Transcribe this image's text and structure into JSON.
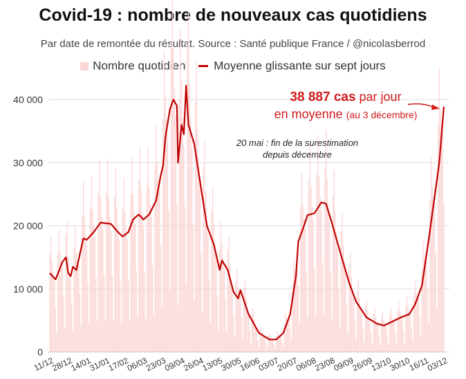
{
  "chart_data": {
    "type": "bar+line",
    "title": "Covid-19 : nombre de nouveaux cas quotidiens",
    "subtitle": "Par date de remontée du résultat. Source : Santé publique France / @nicolasberrod",
    "legend": [
      "Nombre quotidien",
      "Moyenne glissante sur sept jours"
    ],
    "legend_position": "top",
    "ylim": [
      0,
      45000
    ],
    "yticks": [
      0,
      10000,
      20000,
      30000,
      40000
    ],
    "ytick_labels": [
      "0",
      "10 000",
      "20 000",
      "30 000",
      "40 000"
    ],
    "xtick_labels": [
      "11/12",
      "28/12",
      "14/01",
      "31/01",
      "17/02",
      "06/03",
      "23/03",
      "09/04",
      "26/04",
      "13/05",
      "30/05",
      "16/06",
      "03/07",
      "20/07",
      "06/08",
      "23/08",
      "09/09",
      "26/09",
      "13/10",
      "30/10",
      "16/11",
      "03/12"
    ],
    "xtick_step_days": 17,
    "total_days": 357,
    "moving_average": [
      [
        0,
        12500
      ],
      [
        5,
        11500
      ],
      [
        11,
        14300
      ],
      [
        14,
        15000
      ],
      [
        16,
        12500
      ],
      [
        18,
        12000
      ],
      [
        20,
        13500
      ],
      [
        23,
        13000
      ],
      [
        26,
        15500
      ],
      [
        29,
        18000
      ],
      [
        32,
        17800
      ],
      [
        38,
        19000
      ],
      [
        44,
        20500
      ],
      [
        53,
        20300
      ],
      [
        59,
        19000
      ],
      [
        63,
        18300
      ],
      [
        68,
        19000
      ],
      [
        72,
        21000
      ],
      [
        77,
        21800
      ],
      [
        81,
        21000
      ],
      [
        86,
        21800
      ],
      [
        92,
        24000
      ],
      [
        96,
        28000
      ],
      [
        98,
        29500
      ],
      [
        100,
        34000
      ],
      [
        104,
        38500
      ],
      [
        107,
        40000
      ],
      [
        110,
        39000
      ],
      [
        111,
        30000
      ],
      [
        114,
        36000
      ],
      [
        116,
        34500
      ],
      [
        118,
        42200
      ],
      [
        120,
        36000
      ],
      [
        125,
        33000
      ],
      [
        130,
        27000
      ],
      [
        136,
        20000
      ],
      [
        142,
        17000
      ],
      [
        147,
        13000
      ],
      [
        149,
        14500
      ],
      [
        154,
        13000
      ],
      [
        159,
        9500
      ],
      [
        163,
        8500
      ],
      [
        165,
        9800
      ],
      [
        172,
        6000
      ],
      [
        181,
        3000
      ],
      [
        190,
        2000
      ],
      [
        196,
        2000
      ],
      [
        202,
        3000
      ],
      [
        208,
        6000
      ],
      [
        213,
        12000
      ],
      [
        215,
        17500
      ],
      [
        219,
        19500
      ],
      [
        223,
        21700
      ],
      [
        229,
        22000
      ],
      [
        235,
        23700
      ],
      [
        239,
        23500
      ],
      [
        244,
        20500
      ],
      [
        251,
        16000
      ],
      [
        259,
        11000
      ],
      [
        265,
        8000
      ],
      [
        274,
        5500
      ],
      [
        283,
        4500
      ],
      [
        289,
        4200
      ],
      [
        295,
        4700
      ],
      [
        304,
        5500
      ],
      [
        311,
        6000
      ],
      [
        316,
        7500
      ],
      [
        322,
        10500
      ],
      [
        328,
        18000
      ],
      [
        334,
        26000
      ],
      [
        337,
        30000
      ],
      [
        341,
        38887
      ]
    ],
    "annotations": {
      "latest_value": "38 887 cas",
      "latest_suffix": "par jour",
      "latest_line2": "en moyenne",
      "latest_date": "(au 3 décembre)",
      "note_line1": "20 mai : fin de la surestimation",
      "note_line2": "depuis décembre"
    },
    "colors": {
      "bars": "#fcd6d6",
      "line": "#c00000",
      "annotation": "#d21a1a",
      "grid": "#dddddd"
    }
  }
}
